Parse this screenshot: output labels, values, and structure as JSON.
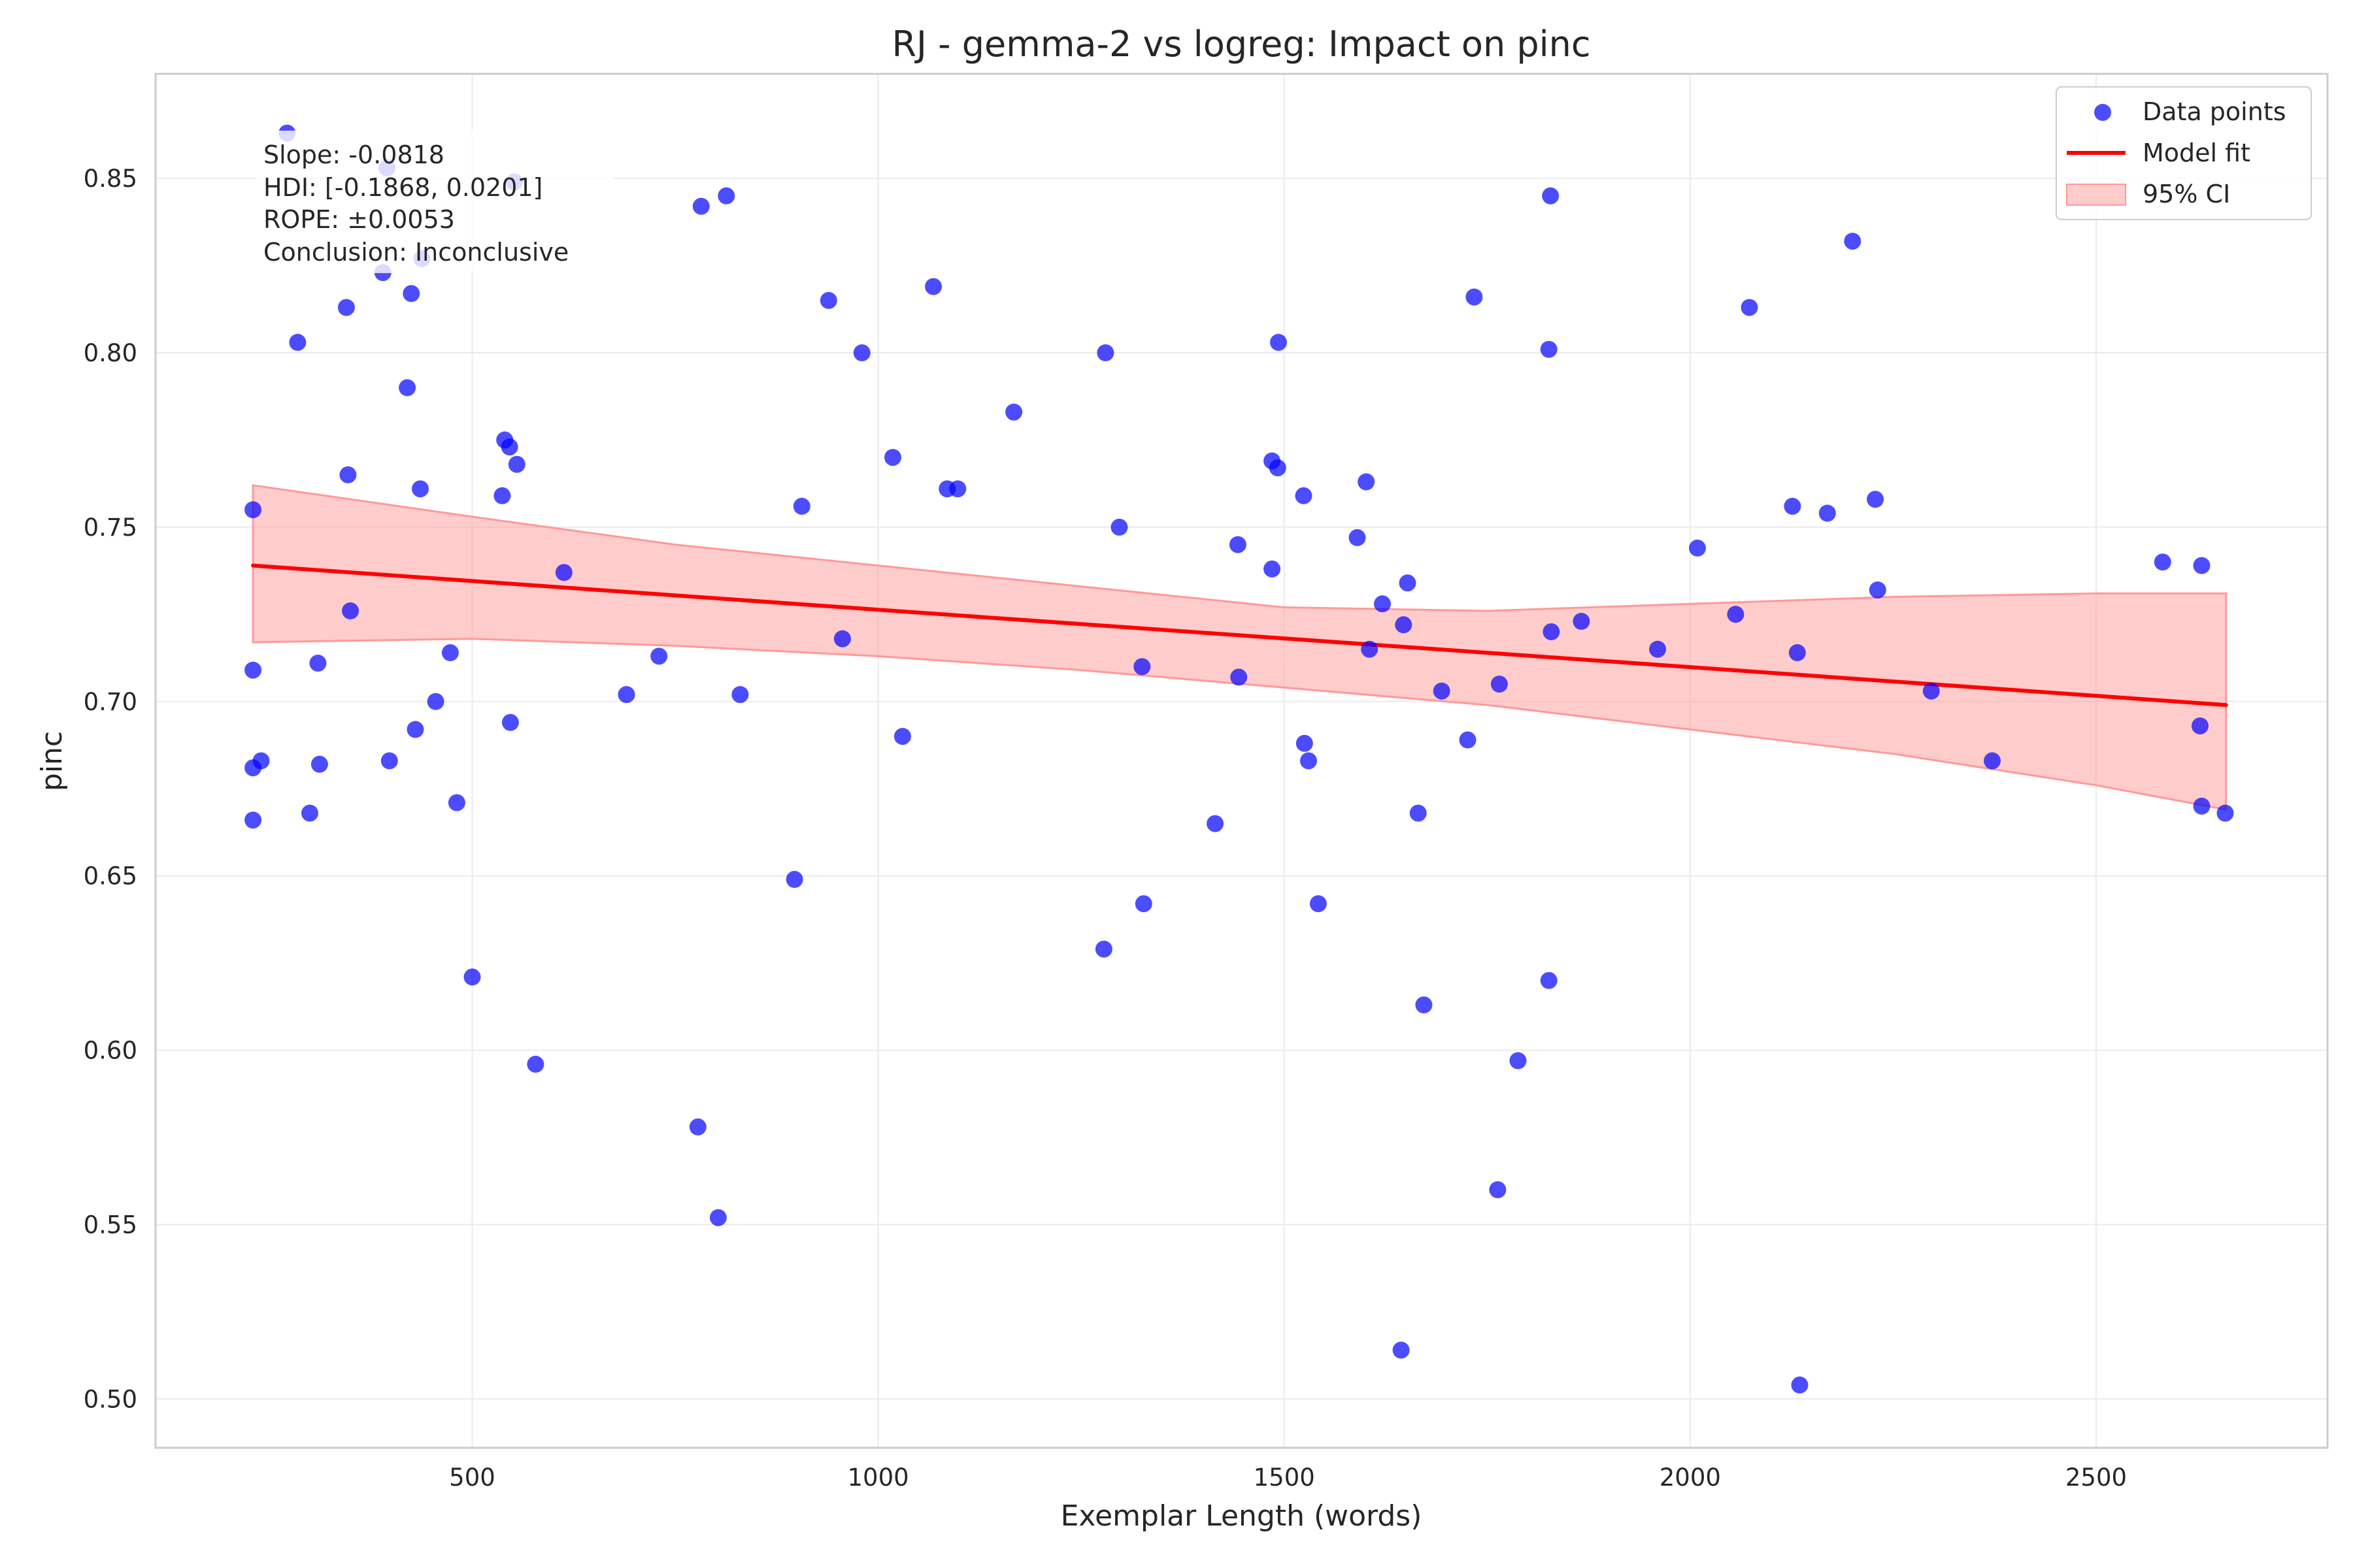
{
  "chart_data": {
    "type": "scatter",
    "title": "RJ - gemma-2 vs logreg: Impact on pinc",
    "xlabel": "Exemplar Length (words)",
    "ylabel": "pinc",
    "xlim": [
      110,
      2785
    ],
    "ylim": [
      0.486,
      0.88
    ],
    "xticks": [
      500,
      1000,
      1500,
      2000,
      2500
    ],
    "xtick_labels": [
      "500",
      "1000",
      "1500",
      "2000",
      "2500"
    ],
    "yticks": [
      0.5,
      0.55,
      0.6,
      0.65,
      0.7,
      0.75,
      0.8,
      0.85
    ],
    "ytick_labels": [
      "0.50",
      "0.55",
      "0.60",
      "0.65",
      "0.70",
      "0.75",
      "0.80",
      "0.85"
    ],
    "grid": true,
    "legend_position": "top-right",
    "legend": [
      "Data points",
      "Model fit",
      "95% CI"
    ],
    "annotation": [
      "Slope: -0.0818",
      "HDI: [-0.1868, 0.0201]",
      "ROPE: ±0.0053",
      "Conclusion: Inconclusive"
    ],
    "colors": {
      "points": "#0000ff",
      "fit": "#ff0000",
      "ci": "#ff9999"
    },
    "fit_line": {
      "x": [
        230,
        2660
      ],
      "y": [
        0.739,
        0.699
      ]
    },
    "ci_band": {
      "x": [
        230,
        500,
        750,
        1000,
        1250,
        1500,
        1750,
        2000,
        2250,
        2500,
        2660
      ],
      "upper": [
        0.762,
        0.753,
        0.745,
        0.739,
        0.733,
        0.727,
        0.726,
        0.728,
        0.73,
        0.731,
        0.731
      ],
      "lower": [
        0.717,
        0.718,
        0.716,
        0.713,
        0.709,
        0.704,
        0.699,
        0.692,
        0.685,
        0.676,
        0.669
      ]
    },
    "series": [
      {
        "name": "Data points",
        "points": [
          [
            230,
            0.755
          ],
          [
            230,
            0.709
          ],
          [
            230,
            0.681
          ],
          [
            230,
            0.666
          ],
          [
            240,
            0.683
          ],
          [
            272,
            0.863
          ],
          [
            285,
            0.803
          ],
          [
            300,
            0.668
          ],
          [
            310,
            0.711
          ],
          [
            312,
            0.682
          ],
          [
            345,
            0.813
          ],
          [
            347,
            0.765
          ],
          [
            350,
            0.726
          ],
          [
            390,
            0.823
          ],
          [
            395,
            0.853
          ],
          [
            398,
            0.683
          ],
          [
            420,
            0.79
          ],
          [
            425,
            0.817
          ],
          [
            430,
            0.692
          ],
          [
            436,
            0.761
          ],
          [
            438,
            0.827
          ],
          [
            455,
            0.7
          ],
          [
            473,
            0.714
          ],
          [
            481,
            0.671
          ],
          [
            500,
            0.621
          ],
          [
            537,
            0.759
          ],
          [
            540,
            0.775
          ],
          [
            546,
            0.773
          ],
          [
            547,
            0.694
          ],
          [
            552,
            0.849
          ],
          [
            555,
            0.768
          ],
          [
            578,
            0.596
          ],
          [
            613,
            0.737
          ],
          [
            690,
            0.702
          ],
          [
            730,
            0.713
          ],
          [
            778,
            0.578
          ],
          [
            782,
            0.842
          ],
          [
            803,
            0.552
          ],
          [
            813,
            0.845
          ],
          [
            830,
            0.702
          ],
          [
            897,
            0.649
          ],
          [
            906,
            0.756
          ],
          [
            939,
            0.815
          ],
          [
            956,
            0.718
          ],
          [
            980,
            0.8
          ],
          [
            1018,
            0.77
          ],
          [
            1030,
            0.69
          ],
          [
            1068,
            0.819
          ],
          [
            1085,
            0.761
          ],
          [
            1098,
            0.761
          ],
          [
            1167,
            0.783
          ],
          [
            1278,
            0.629
          ],
          [
            1280,
            0.8
          ],
          [
            1297,
            0.75
          ],
          [
            1325,
            0.71
          ],
          [
            1327,
            0.642
          ],
          [
            1415,
            0.665
          ],
          [
            1443,
            0.745
          ],
          [
            1444,
            0.707
          ],
          [
            1485,
            0.769
          ],
          [
            1485,
            0.738
          ],
          [
            1492,
            0.767
          ],
          [
            1493,
            0.803
          ],
          [
            1524,
            0.759
          ],
          [
            1525,
            0.688
          ],
          [
            1530,
            0.683
          ],
          [
            1542,
            0.642
          ],
          [
            1590,
            0.747
          ],
          [
            1601,
            0.763
          ],
          [
            1605,
            0.715
          ],
          [
            1621,
            0.728
          ],
          [
            1644,
            0.514
          ],
          [
            1647,
            0.722
          ],
          [
            1652,
            0.734
          ],
          [
            1665,
            0.668
          ],
          [
            1672,
            0.613
          ],
          [
            1694,
            0.703
          ],
          [
            1726,
            0.689
          ],
          [
            1734,
            0.816
          ],
          [
            1763,
            0.56
          ],
          [
            1765,
            0.705
          ],
          [
            1788,
            0.597
          ],
          [
            1826,
            0.62
          ],
          [
            1826,
            0.801
          ],
          [
            1828,
            0.845
          ],
          [
            1829,
            0.72
          ],
          [
            1866,
            0.723
          ],
          [
            1960,
            0.715
          ],
          [
            2009,
            0.744
          ],
          [
            2056,
            0.725
          ],
          [
            2073,
            0.813
          ],
          [
            2126,
            0.756
          ],
          [
            2132,
            0.714
          ],
          [
            2135,
            0.504
          ],
          [
            2169,
            0.754
          ],
          [
            2200,
            0.832
          ],
          [
            2228,
            0.758
          ],
          [
            2231,
            0.732
          ],
          [
            2297,
            0.703
          ],
          [
            2372,
            0.683
          ],
          [
            2582,
            0.74
          ],
          [
            2628,
            0.693
          ],
          [
            2630,
            0.739
          ],
          [
            2630,
            0.67
          ],
          [
            2659,
            0.668
          ]
        ]
      }
    ]
  }
}
